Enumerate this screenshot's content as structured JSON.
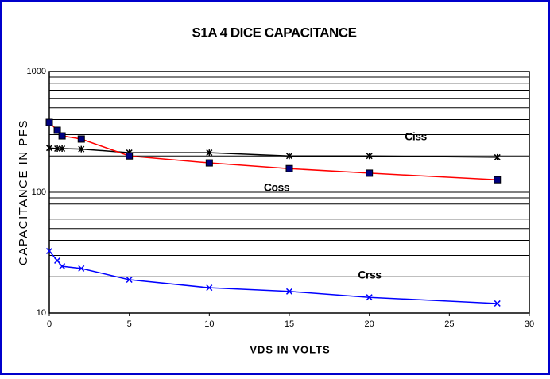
{
  "chart_data": {
    "type": "line",
    "title": "S1A 4 DICE CAPACITANCE",
    "x_label": "VDS IN VOLTS",
    "y_label": "CAPACITANCE IN PFS",
    "x": [
      0,
      0.5,
      0.8,
      2,
      5,
      10,
      15,
      20,
      28
    ],
    "series": [
      {
        "name": "Ciss",
        "color": "#000000",
        "marker": "asterisk",
        "values": [
          233,
          230,
          230,
          228,
          213,
          213,
          200,
          200,
          195
        ]
      },
      {
        "name": "Coss",
        "color": "#ff0000",
        "marker": "square",
        "values": [
          379,
          326,
          293,
          276,
          200,
          175,
          157,
          144,
          127
        ]
      },
      {
        "name": "Crss",
        "color": "#0000ff",
        "marker": "x",
        "values": [
          32.6,
          27.2,
          24.4,
          23.4,
          18.9,
          16.2,
          15.1,
          13.5,
          12.0
        ]
      }
    ],
    "xlim": [
      0,
      30
    ],
    "xticks": [
      0,
      5,
      10,
      15,
      20,
      25,
      30
    ],
    "ylim": [
      10,
      1000
    ],
    "yticks": [
      10,
      100,
      1000
    ],
    "yminor": [
      20,
      30,
      40,
      50,
      60,
      70,
      80,
      90,
      200,
      300,
      400,
      500,
      600,
      700,
      800,
      900
    ],
    "log_y": true,
    "grid": true
  }
}
